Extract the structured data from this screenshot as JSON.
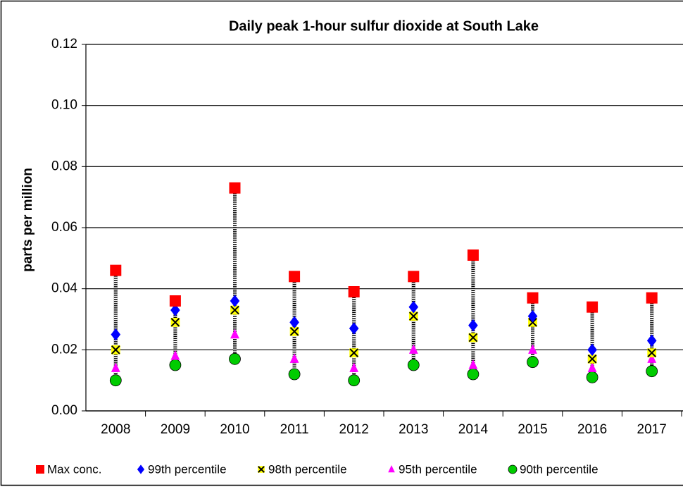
{
  "chart_data": {
    "type": "line",
    "title": "Daily peak 1-hour sulfur dioxide at South Lake",
    "y_label": "parts per million",
    "categories": [
      "2008",
      "2009",
      "2010",
      "2011",
      "2012",
      "2013",
      "2014",
      "2015",
      "2016",
      "2017"
    ],
    "series": [
      {
        "name": "Max conc.",
        "color": "#ff0000",
        "marker": "square",
        "values": [
          0.046,
          0.036,
          0.073,
          0.044,
          0.039,
          0.044,
          0.051,
          0.037,
          0.034,
          0.037
        ]
      },
      {
        "name": "99th percentile",
        "color": "#0000ff",
        "marker": "diamond",
        "values": [
          0.025,
          0.033,
          0.036,
          0.029,
          0.027,
          0.034,
          0.028,
          0.031,
          0.02,
          0.023
        ]
      },
      {
        "name": "98th percentile",
        "color": "#ffff00",
        "marker": "x",
        "values": [
          0.02,
          0.029,
          0.033,
          0.026,
          0.019,
          0.031,
          0.024,
          0.029,
          0.017,
          0.019
        ]
      },
      {
        "name": "95th percentile",
        "color": "#ff00ff",
        "marker": "triangle",
        "values": [
          0.014,
          0.018,
          0.025,
          0.017,
          0.014,
          0.02,
          0.015,
          0.02,
          0.014,
          0.017
        ]
      },
      {
        "name": "90th percentile",
        "color": "#00cc00",
        "marker": "circle",
        "values": [
          0.01,
          0.015,
          0.017,
          0.012,
          0.01,
          0.015,
          0.012,
          0.016,
          0.011,
          0.013
        ]
      }
    ],
    "ylim": [
      0,
      0.12
    ],
    "yticks": [
      {
        "value": 0,
        "label": "0.00"
      },
      {
        "value": 0.02,
        "label": "0.02"
      },
      {
        "value": 0.04,
        "label": "0.04"
      },
      {
        "value": 0.06,
        "label": "0.06"
      },
      {
        "value": 0.08,
        "label": "0.08"
      },
      {
        "value": 0.1,
        "label": "0.10"
      },
      {
        "value": 0.12,
        "label": "0.12"
      }
    ],
    "grid": true,
    "legend": "bottom"
  }
}
